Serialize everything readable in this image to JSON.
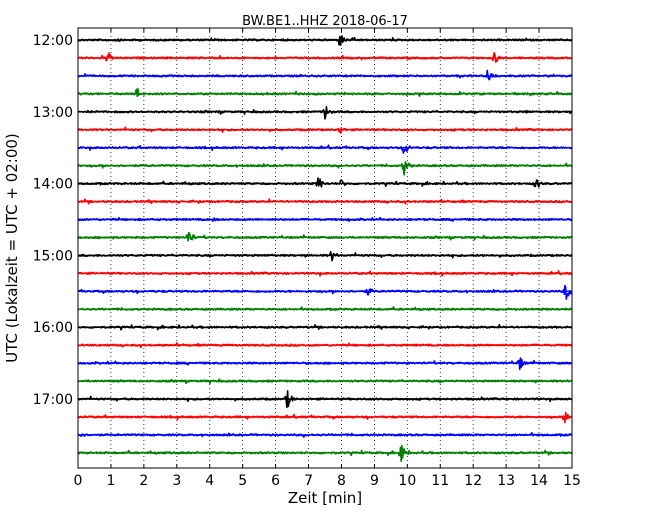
{
  "chart_data": {
    "type": "line",
    "title": "BW.BE1..HHZ 2018-06-17",
    "xlabel": "Zeit  [min]",
    "ylabel": "UTC (Lokalzeit = UTC + 02:00)",
    "xlim": [
      0,
      15
    ],
    "x_ticks": [
      "0",
      "1",
      "2",
      "3",
      "4",
      "5",
      "6",
      "7",
      "8",
      "9",
      "10",
      "11",
      "12",
      "13",
      "14",
      "15"
    ],
    "y_ticks": [
      "12:00",
      "13:00",
      "14:00",
      "15:00",
      "16:00",
      "17:00"
    ],
    "grid": "vertical dotted",
    "color_cycle": [
      "#000000",
      "#ff0000",
      "#0000ff",
      "#008000"
    ],
    "series": [
      {
        "start": "12:00",
        "events": [
          {
            "t": 1.2,
            "amp": 0.15
          },
          {
            "t": 6.3,
            "amp": 0.1
          },
          {
            "t": 7.95,
            "amp": 0.55
          }
        ]
      },
      {
        "start": "12:15",
        "events": [
          {
            "t": 0.9,
            "amp": 0.5
          },
          {
            "t": 12.65,
            "amp": 0.5
          }
        ]
      },
      {
        "start": "12:30",
        "events": [
          {
            "t": 12.45,
            "amp": 0.6
          }
        ]
      },
      {
        "start": "12:45",
        "events": [
          {
            "t": 1.8,
            "amp": 0.5
          }
        ]
      },
      {
        "start": "13:00",
        "events": [
          {
            "t": 4.3,
            "amp": 0.15
          },
          {
            "t": 7.5,
            "amp": 0.6
          },
          {
            "t": 13.6,
            "amp": 0.15
          }
        ]
      },
      {
        "start": "13:15",
        "events": [
          {
            "t": 7.95,
            "amp": 0.35
          },
          {
            "t": 5.5,
            "amp": 0.08
          }
        ]
      },
      {
        "start": "13:30",
        "events": [
          {
            "t": 9.9,
            "amp": 0.6
          }
        ]
      },
      {
        "start": "13:45",
        "events": [
          {
            "t": 9.9,
            "amp": 0.7
          },
          {
            "t": 2.1,
            "amp": 0.1
          }
        ]
      },
      {
        "start": "14:00",
        "events": [
          {
            "t": 7.3,
            "amp": 0.55
          },
          {
            "t": 8.0,
            "amp": 0.35
          },
          {
            "t": 13.9,
            "amp": 0.5
          },
          {
            "t": 4.5,
            "amp": 0.1
          }
        ]
      },
      {
        "start": "14:15",
        "events": [
          {
            "t": 4.8,
            "amp": 0.08
          }
        ]
      },
      {
        "start": "14:30",
        "events": [
          {
            "t": 4.1,
            "amp": 0.15
          },
          {
            "t": 8.2,
            "amp": 0.15
          }
        ]
      },
      {
        "start": "14:45",
        "events": [
          {
            "t": 3.35,
            "amp": 0.65
          }
        ]
      },
      {
        "start": "15:00",
        "events": [
          {
            "t": 7.7,
            "amp": 0.45
          },
          {
            "t": 5.9,
            "amp": 0.1
          },
          {
            "t": 12.3,
            "amp": 0.1
          }
        ]
      },
      {
        "start": "15:15",
        "events": [
          {
            "t": 13.3,
            "amp": 0.12
          },
          {
            "t": 9.0,
            "amp": 0.08
          }
        ]
      },
      {
        "start": "15:30",
        "events": [
          {
            "t": 8.8,
            "amp": 0.35
          },
          {
            "t": 14.8,
            "amp": 0.75
          }
        ]
      },
      {
        "start": "15:45",
        "events": [
          {
            "t": 6.0,
            "amp": 0.08
          }
        ]
      },
      {
        "start": "16:00",
        "events": [
          {
            "t": 3.0,
            "amp": 0.06
          }
        ]
      },
      {
        "start": "16:15",
        "events": [
          {
            "t": 10.5,
            "amp": 0.06
          }
        ]
      },
      {
        "start": "16:30",
        "events": [
          {
            "t": 13.4,
            "amp": 0.55
          },
          {
            "t": 4.0,
            "amp": 0.08
          }
        ]
      },
      {
        "start": "16:45",
        "events": [
          {
            "t": 8.0,
            "amp": 0.06
          }
        ]
      },
      {
        "start": "17:00",
        "events": [
          {
            "t": 6.35,
            "amp": 0.7
          },
          {
            "t": 11.5,
            "amp": 0.08
          }
        ]
      },
      {
        "start": "17:15",
        "events": [
          {
            "t": 8.2,
            "amp": 0.1
          },
          {
            "t": 14.8,
            "amp": 0.5
          }
        ]
      },
      {
        "start": "17:30",
        "events": [
          {
            "t": 0.1,
            "amp": 0.2
          },
          {
            "t": 10.3,
            "amp": 0.08
          }
        ]
      },
      {
        "start": "17:45",
        "events": [
          {
            "t": 9.8,
            "amp": 0.75
          }
        ]
      }
    ]
  }
}
